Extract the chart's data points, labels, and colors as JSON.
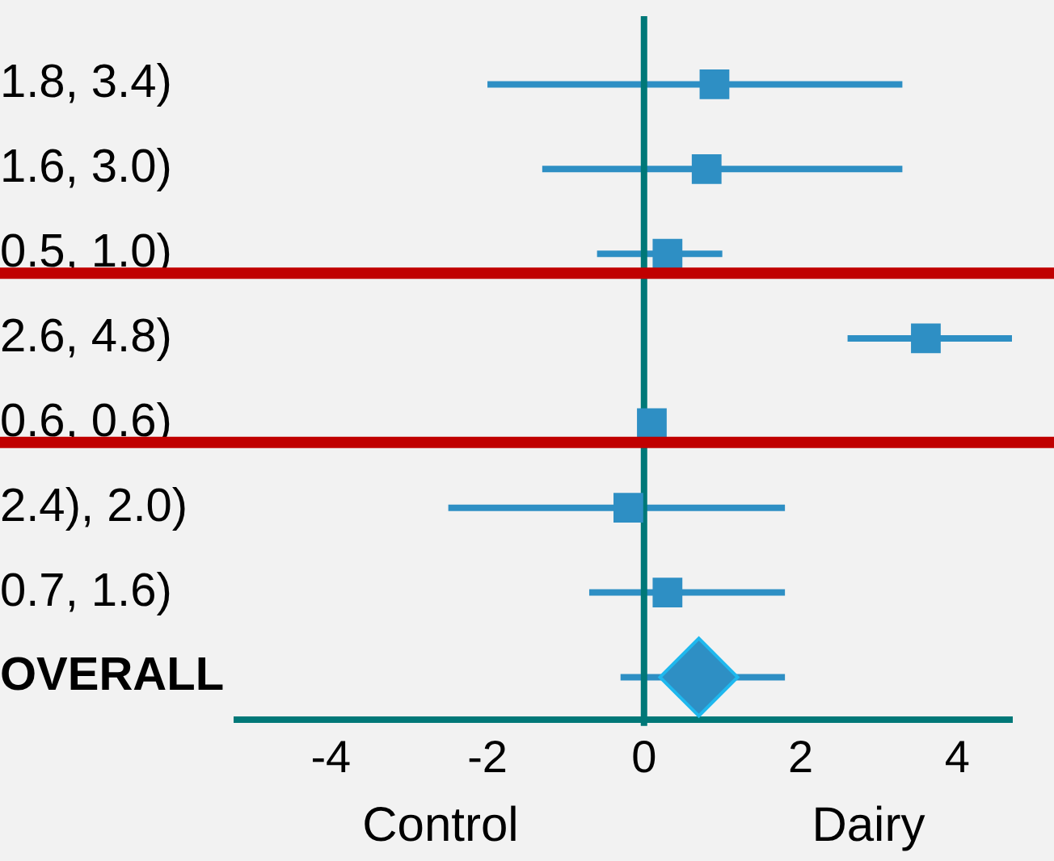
{
  "chart_data": {
    "type": "scatter",
    "orientation": "horizontal",
    "categories": [
      "1.8, 3.4)",
      "1.6, 3.0)",
      "0.5, 1.0)",
      "2.6, 4.8)",
      "0.6, 0.6)",
      "2.4), 2.0)",
      "0.7, 1.6)",
      "OVERALL"
    ],
    "series": [
      {
        "color": "#2e8fc4",
        "marker": "square",
        "values": [
          0.9,
          0.8,
          0.3,
          3.6,
          0.1,
          -0.2,
          0.3,
          null
        ],
        "errors": [
          [
            -2.0,
            3.3
          ],
          [
            -1.3,
            3.3
          ],
          [
            -0.6,
            1.0
          ],
          [
            2.6,
            4.7
          ],
          null,
          [
            -2.5,
            1.8
          ],
          [
            -0.7,
            1.8
          ],
          null
        ]
      },
      {
        "color": "#2e8fc4",
        "marker": "diamond",
        "values": [
          null,
          null,
          null,
          null,
          null,
          null,
          null,
          0.7
        ],
        "errors": [
          null,
          null,
          null,
          null,
          null,
          null,
          null,
          [
            -0.3,
            1.8
          ]
        ]
      }
    ],
    "xlim": [
      -5.2,
      4.7
    ],
    "xticks": [
      -4,
      -2,
      0,
      2,
      4
    ],
    "tick_labels": "xy",
    "grid": false,
    "legend": false,
    "ref_lines": [
      {
        "axis": "x",
        "value": 0,
        "color": "#007878"
      },
      {
        "axis": "y",
        "value": "0.5, 1.0)",
        "color": "#c00000"
      },
      {
        "axis": "y",
        "value": "0.6, 0.6)",
        "color": "#c00000"
      }
    ],
    "annotations": [
      "Control",
      "Dairy"
    ]
  }
}
